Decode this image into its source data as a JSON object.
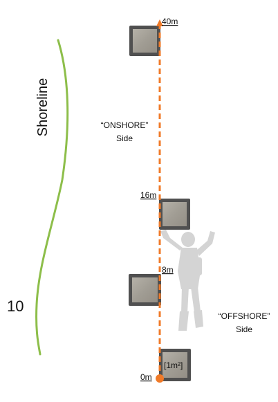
{
  "shoreline_label": "Shoreline",
  "transect_number": "10",
  "onshore": {
    "line1": "“ONSHORE”",
    "line2": "Side"
  },
  "offshore": {
    "line1": "“OFFSHORE”",
    "line2": "Side"
  },
  "markers": [
    {
      "distance_m": 40,
      "label": "40m"
    },
    {
      "distance_m": 16,
      "label": "16m"
    },
    {
      "distance_m": 8,
      "label": "8m"
    },
    {
      "distance_m": 0,
      "label": "0m"
    }
  ],
  "quadrat_label": "[1m²]",
  "colors": {
    "transect": "#F07A28",
    "shoreline": "#8DBE4A",
    "quadrat_frame": "#505050",
    "quadrat_fill": "#A8A49B",
    "diver_silhouette": "#D4D4D4"
  }
}
